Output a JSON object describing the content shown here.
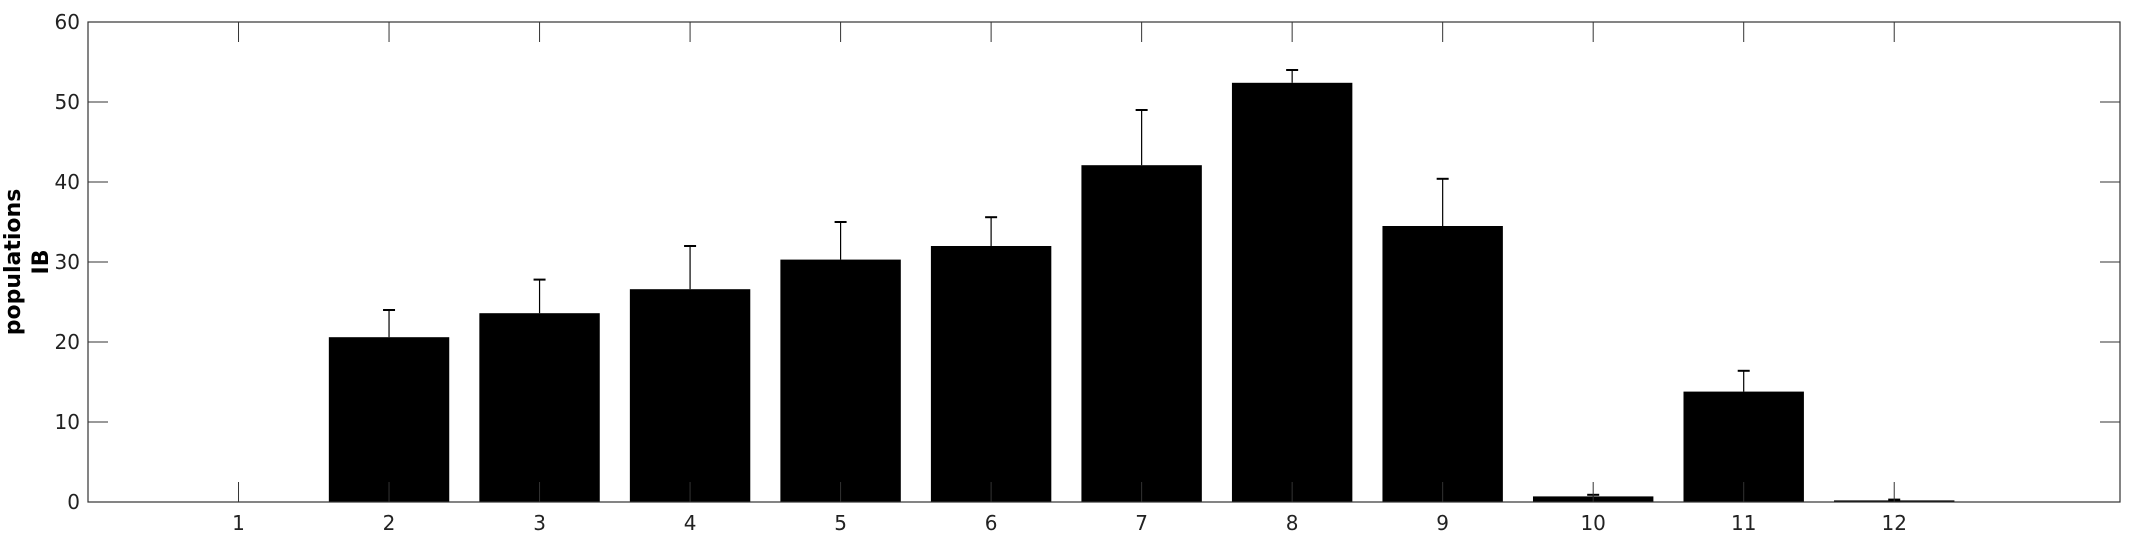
{
  "chart_data": {
    "type": "bar",
    "title": "",
    "xlabel": "",
    "ylabel_lines": [
      "populations",
      "IB"
    ],
    "categories": [
      "1",
      "2",
      "3",
      "4",
      "5",
      "6",
      "7",
      "8",
      "9",
      "10",
      "11",
      "12"
    ],
    "values": [
      0,
      20.6,
      23.6,
      26.6,
      30.3,
      32.0,
      42.1,
      52.4,
      34.5,
      0.7,
      13.8,
      0.2
    ],
    "error_upper": [
      0,
      24.0,
      27.8,
      32.0,
      35.0,
      35.6,
      49.0,
      54.0,
      40.4,
      0.9,
      16.4,
      0.3
    ],
    "xlim": [
      0,
      13.5
    ],
    "ylim": [
      0,
      60
    ],
    "yticks": [
      0,
      10,
      20,
      30,
      40,
      50,
      60
    ],
    "grid": false,
    "bar_color": "#000000",
    "axis_color": "#333333"
  }
}
